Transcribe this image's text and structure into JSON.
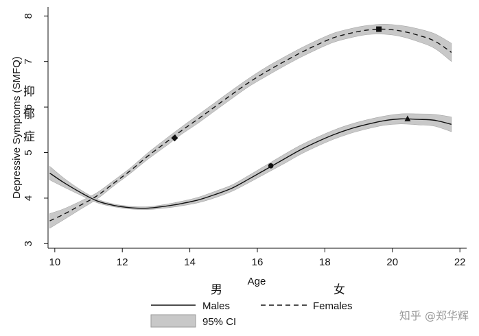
{
  "chart_data": {
    "type": "line",
    "xlabel": "Age",
    "ylabel": "Depressive Symptoms (SMFQ)",
    "xlim": [
      9.8,
      22.2
    ],
    "ylim": [
      2.9,
      8.2
    ],
    "x_ticks": [
      10,
      12,
      14,
      16,
      18,
      20,
      22
    ],
    "y_ticks": [
      3,
      4,
      5,
      6,
      7,
      8
    ],
    "grid": false,
    "legend_position": "bottom",
    "ci_label": "95% CI",
    "series": [
      {
        "name": "Males",
        "line_style": "solid",
        "x": [
          9.85,
          10.25,
          10.75,
          11.25,
          11.75,
          12.25,
          12.75,
          13.25,
          13.75,
          14.25,
          14.75,
          15.25,
          15.75,
          16.25,
          16.75,
          17.25,
          17.75,
          18.25,
          18.75,
          19.25,
          19.75,
          20.25,
          20.75,
          21.25,
          21.75
        ],
        "y": [
          4.55,
          4.35,
          4.13,
          3.94,
          3.84,
          3.79,
          3.78,
          3.82,
          3.88,
          3.96,
          4.08,
          4.22,
          4.42,
          4.63,
          4.84,
          5.05,
          5.23,
          5.39,
          5.52,
          5.62,
          5.7,
          5.74,
          5.73,
          5.71,
          5.62
        ],
        "ci_halfwidth": [
          0.15,
          0.1,
          0.06,
          0.04,
          0.03,
          0.03,
          0.03,
          0.04,
          0.05,
          0.06,
          0.07,
          0.07,
          0.08,
          0.09,
          0.1,
          0.1,
          0.1,
          0.1,
          0.1,
          0.1,
          0.1,
          0.11,
          0.12,
          0.13,
          0.16
        ],
        "marker": {
          "symbol": "circle",
          "x": 16.4,
          "y": 4.71
        },
        "peak_marker": {
          "symbol": "triangle",
          "x": 20.45,
          "y": 5.74
        }
      },
      {
        "name": "Females",
        "line_style": "dashed",
        "x": [
          9.85,
          10.25,
          10.75,
          11.25,
          11.75,
          12.25,
          12.75,
          13.25,
          13.75,
          14.25,
          14.75,
          15.25,
          15.75,
          16.25,
          16.75,
          17.25,
          17.75,
          18.25,
          18.75,
          19.25,
          19.75,
          20.25,
          20.75,
          21.25,
          21.75
        ],
        "y": [
          3.5,
          3.64,
          3.84,
          4.05,
          4.33,
          4.61,
          4.92,
          5.2,
          5.48,
          5.74,
          6.01,
          6.28,
          6.54,
          6.77,
          6.98,
          7.18,
          7.36,
          7.52,
          7.62,
          7.69,
          7.71,
          7.67,
          7.58,
          7.45,
          7.2
        ],
        "ci_halfwidth": [
          0.16,
          0.12,
          0.09,
          0.07,
          0.06,
          0.06,
          0.07,
          0.08,
          0.08,
          0.09,
          0.09,
          0.09,
          0.09,
          0.1,
          0.1,
          0.1,
          0.1,
          0.1,
          0.1,
          0.1,
          0.11,
          0.12,
          0.14,
          0.16,
          0.2
        ],
        "marker": {
          "symbol": "diamond",
          "x": 13.55,
          "y": 5.32
        },
        "peak_marker": {
          "symbol": "square",
          "x": 19.6,
          "y": 7.71
        }
      }
    ],
    "annotations": {
      "ylabel_cn": [
        "抑",
        "郁",
        "症"
      ],
      "male_cn": "男",
      "female_cn": "女"
    }
  },
  "watermark": "知乎 @郑华辉",
  "colors": {
    "line": "#111111",
    "ci_band": "#c8c8c8",
    "axis": "#111111",
    "watermark": "#9a9a9a"
  }
}
